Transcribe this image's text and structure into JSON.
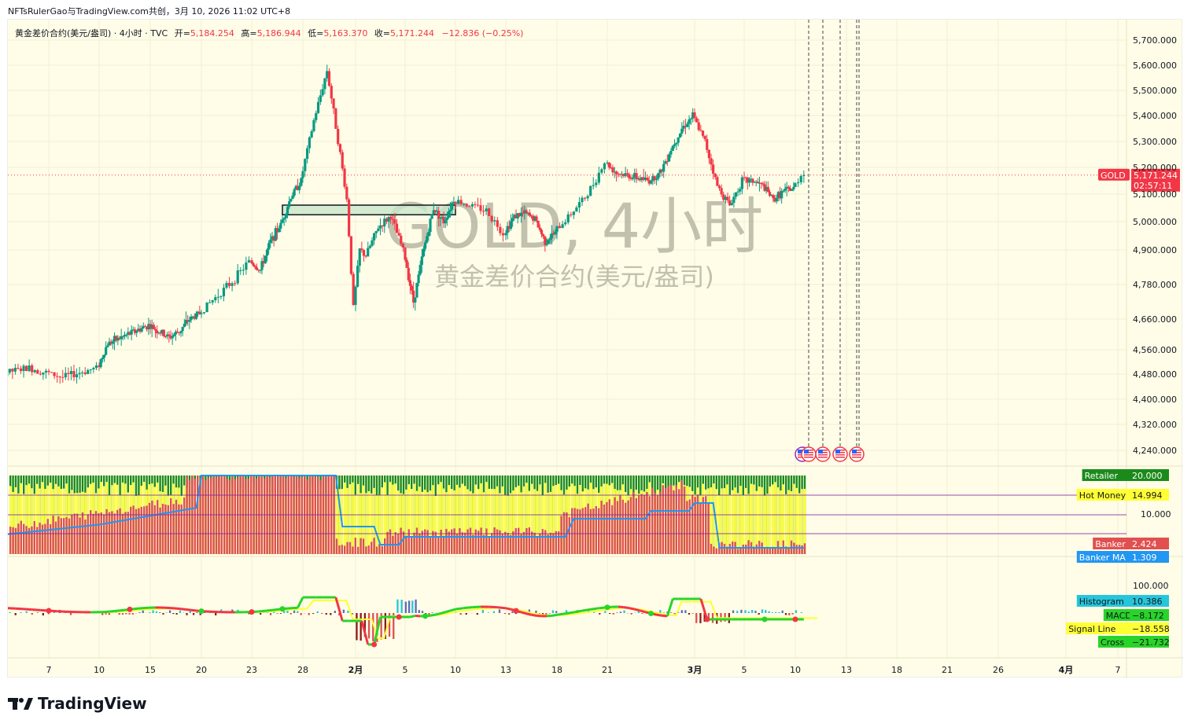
{
  "caption": "NFTsRulerGao与TradingView.com共创，3月 10, 2026 11:02 UTC+8",
  "colors": {
    "up": "#089981",
    "down": "#f23645",
    "background": "#fffde7",
    "price_line": "#f23645"
  },
  "header": {
    "symbol_desc": "黄金差价合约(美元/盎司) · 4小时 · TVC",
    "open_label": "开=",
    "open_value": "5,184.254",
    "high_label": "高=",
    "high_value": "5,186.944",
    "low_label": "低=",
    "low_value": "5,163.370",
    "close_label": "收=",
    "close_value": "5,171.244",
    "change": "−12.836 (−0.25%)"
  },
  "watermark": {
    "main": "GOLD, 4小时",
    "sub": "黄金差价合约(美元/盎司)"
  },
  "price_tag": {
    "symbol": "GOLD",
    "price": "5,171.244",
    "countdown": "02:57:11"
  },
  "footer": {
    "brand": "TradingView",
    "logo_icon": "tradingview-logo-icon"
  },
  "indicator1": {
    "axis_label": "10.000",
    "tags": [
      {
        "label": "Retailer",
        "value": "20.000",
        "color": "#1b8a1b",
        "text_color": "#ffffff"
      },
      {
        "label": "Hot Money",
        "value": "14.994",
        "color": "#ffff33",
        "text_color": "#131722"
      },
      {
        "label": "Banker",
        "value": "2.424",
        "color": "#e05050",
        "text_color": "#ffffff"
      },
      {
        "label": "Banker MA",
        "value": "1.309",
        "color": "#2196f3",
        "text_color": "#ffffff"
      }
    ]
  },
  "indicator2": {
    "axis_label": "100.000",
    "tags": [
      {
        "label": "Histogram",
        "value": "10.386",
        "color": "#26c6da",
        "text_color": "#131722"
      },
      {
        "label": "MACD",
        "value": "−8.172",
        "color": "#29d429",
        "text_color": "#131722"
      },
      {
        "label": "Signal Line",
        "value": "−18.558",
        "color": "#ffff33",
        "text_color": "#131722"
      },
      {
        "label": "Cross",
        "value": "−21.732",
        "color": "#29d429",
        "text_color": "#131722"
      }
    ]
  },
  "chart_data": {
    "type": "candlestick",
    "symbol": "GOLD",
    "timeframe": "4小时",
    "y_ticks": [
      "5,700.000",
      "5,600.000",
      "5,500.000",
      "5,400.000",
      "5,300.000",
      "5,200.000",
      "5,100.000",
      "5,000.000",
      "4,900.000",
      "4,780.000",
      "4,660.000",
      "4,560.000",
      "4,480.000",
      "4,400.000",
      "4,320.000",
      "4,240.000"
    ],
    "y_tick_values": [
      5700,
      5600,
      5500,
      5400,
      5300,
      5200,
      5100,
      5000,
      4900,
      4780,
      4660,
      4560,
      4480,
      4400,
      4320,
      4240
    ],
    "x_ticks": [
      "7",
      "10",
      "15",
      "20",
      "23",
      "28",
      "2月",
      "5",
      "10",
      "13",
      "18",
      "21",
      "3月",
      "5",
      "10",
      "13",
      "18",
      "21",
      "26",
      "4月",
      "7"
    ],
    "x_tick_days": [
      7,
      10,
      15,
      20,
      23,
      28,
      32,
      36,
      41,
      44,
      49,
      52,
      60,
      64,
      69,
      72,
      77,
      80,
      85,
      91,
      97
    ],
    "last_price": 5171.244,
    "price_path": [
      [
        1,
        4380
      ],
      [
        2,
        4450
      ],
      [
        4,
        4480
      ],
      [
        6,
        4500
      ],
      [
        8,
        4470
      ],
      [
        10,
        4500
      ],
      [
        11,
        4580
      ],
      [
        13,
        4610
      ],
      [
        15,
        4640
      ],
      [
        17,
        4600
      ],
      [
        18,
        4620
      ],
      [
        19,
        4660
      ],
      [
        20,
        4680
      ],
      [
        22,
        4790
      ],
      [
        23,
        4860
      ],
      [
        24,
        4830
      ],
      [
        25,
        4930
      ],
      [
        26,
        4990
      ],
      [
        27,
        5090
      ],
      [
        28,
        5150
      ],
      [
        29,
        5380
      ],
      [
        30,
        5580
      ],
      [
        31,
        5250
      ],
      [
        31.5,
        5080
      ],
      [
        32,
        4700
      ],
      [
        32.5,
        4900
      ],
      [
        33,
        4880
      ],
      [
        34,
        4980
      ],
      [
        35,
        5020
      ],
      [
        36,
        4900
      ],
      [
        37,
        4720
      ],
      [
        38,
        4900
      ],
      [
        39,
        5050
      ],
      [
        40,
        5000
      ],
      [
        41,
        5080
      ],
      [
        42,
        5060
      ],
      [
        43,
        5040
      ],
      [
        44,
        4960
      ],
      [
        45,
        5020
      ],
      [
        46,
        5030
      ],
      [
        47,
        5010
      ],
      [
        48,
        4930
      ],
      [
        49,
        4960
      ],
      [
        50,
        5030
      ],
      [
        51,
        5100
      ],
      [
        52,
        5220
      ],
      [
        53,
        5180
      ],
      [
        54,
        5170
      ],
      [
        55,
        5160
      ],
      [
        56,
        5150
      ],
      [
        57,
        5180
      ],
      [
        58,
        5270
      ],
      [
        59,
        5350
      ],
      [
        60,
        5400
      ],
      [
        61,
        5300
      ],
      [
        62,
        5130
      ],
      [
        63,
        5060
      ],
      [
        64,
        5150
      ],
      [
        65,
        5150
      ],
      [
        66,
        5130
      ],
      [
        67,
        5080
      ],
      [
        68,
        5110
      ],
      [
        69,
        5120
      ],
      [
        69.5,
        5171.244
      ]
    ],
    "rectangle_zone": {
      "from_day": 26,
      "to_day": 41,
      "price_low": 5025,
      "price_high": 5060
    },
    "event_day": 70
  }
}
